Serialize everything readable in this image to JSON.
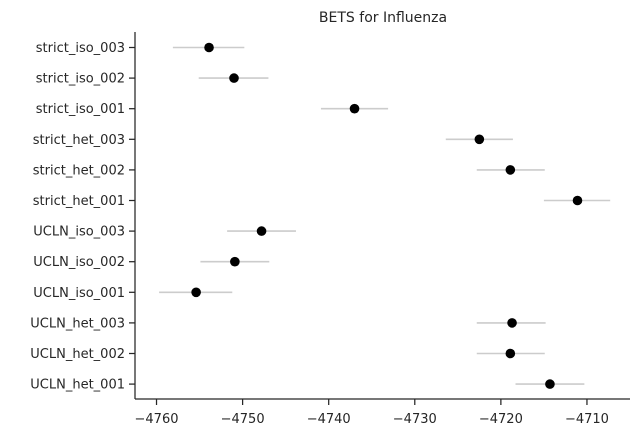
{
  "chart_data": {
    "type": "scatter",
    "title": "BETS for Influenza",
    "xlabel": "",
    "ylabel": "",
    "xlim": [
      -4762.5,
      -4705
    ],
    "xticks": [
      -4760,
      -4750,
      -4740,
      -4730,
      -4720,
      -4710
    ],
    "xtick_labels": [
      "−4760",
      "−4750",
      "−4740",
      "−4730",
      "−4720",
      "−4710"
    ],
    "grid": false,
    "legend": "none",
    "point_color": "#000000",
    "errorbar_color": "#cccccc",
    "categories": [
      "strict_iso_003",
      "strict_iso_002",
      "strict_iso_001",
      "strict_het_003",
      "strict_het_002",
      "strict_het_001",
      "UCLN_iso_003",
      "UCLN_iso_002",
      "UCLN_iso_001",
      "UCLN_het_003",
      "UCLN_het_002",
      "UCLN_het_001"
    ],
    "values": [
      -4753.9,
      -4751.0,
      -4737.0,
      -4722.5,
      -4718.9,
      -4711.1,
      -4747.8,
      -4750.9,
      -4755.4,
      -4718.7,
      -4718.9,
      -4714.3
    ],
    "err_low": [
      -4758.1,
      -4755.1,
      -4740.9,
      -4726.4,
      -4722.8,
      -4715.0,
      -4751.8,
      -4754.9,
      -4759.7,
      -4722.8,
      -4722.8,
      -4718.3
    ],
    "err_high": [
      -4749.8,
      -4747.0,
      -4733.1,
      -4718.6,
      -4714.9,
      -4707.3,
      -4743.8,
      -4746.9,
      -4751.2,
      -4714.8,
      -4714.9,
      -4710.3
    ]
  }
}
